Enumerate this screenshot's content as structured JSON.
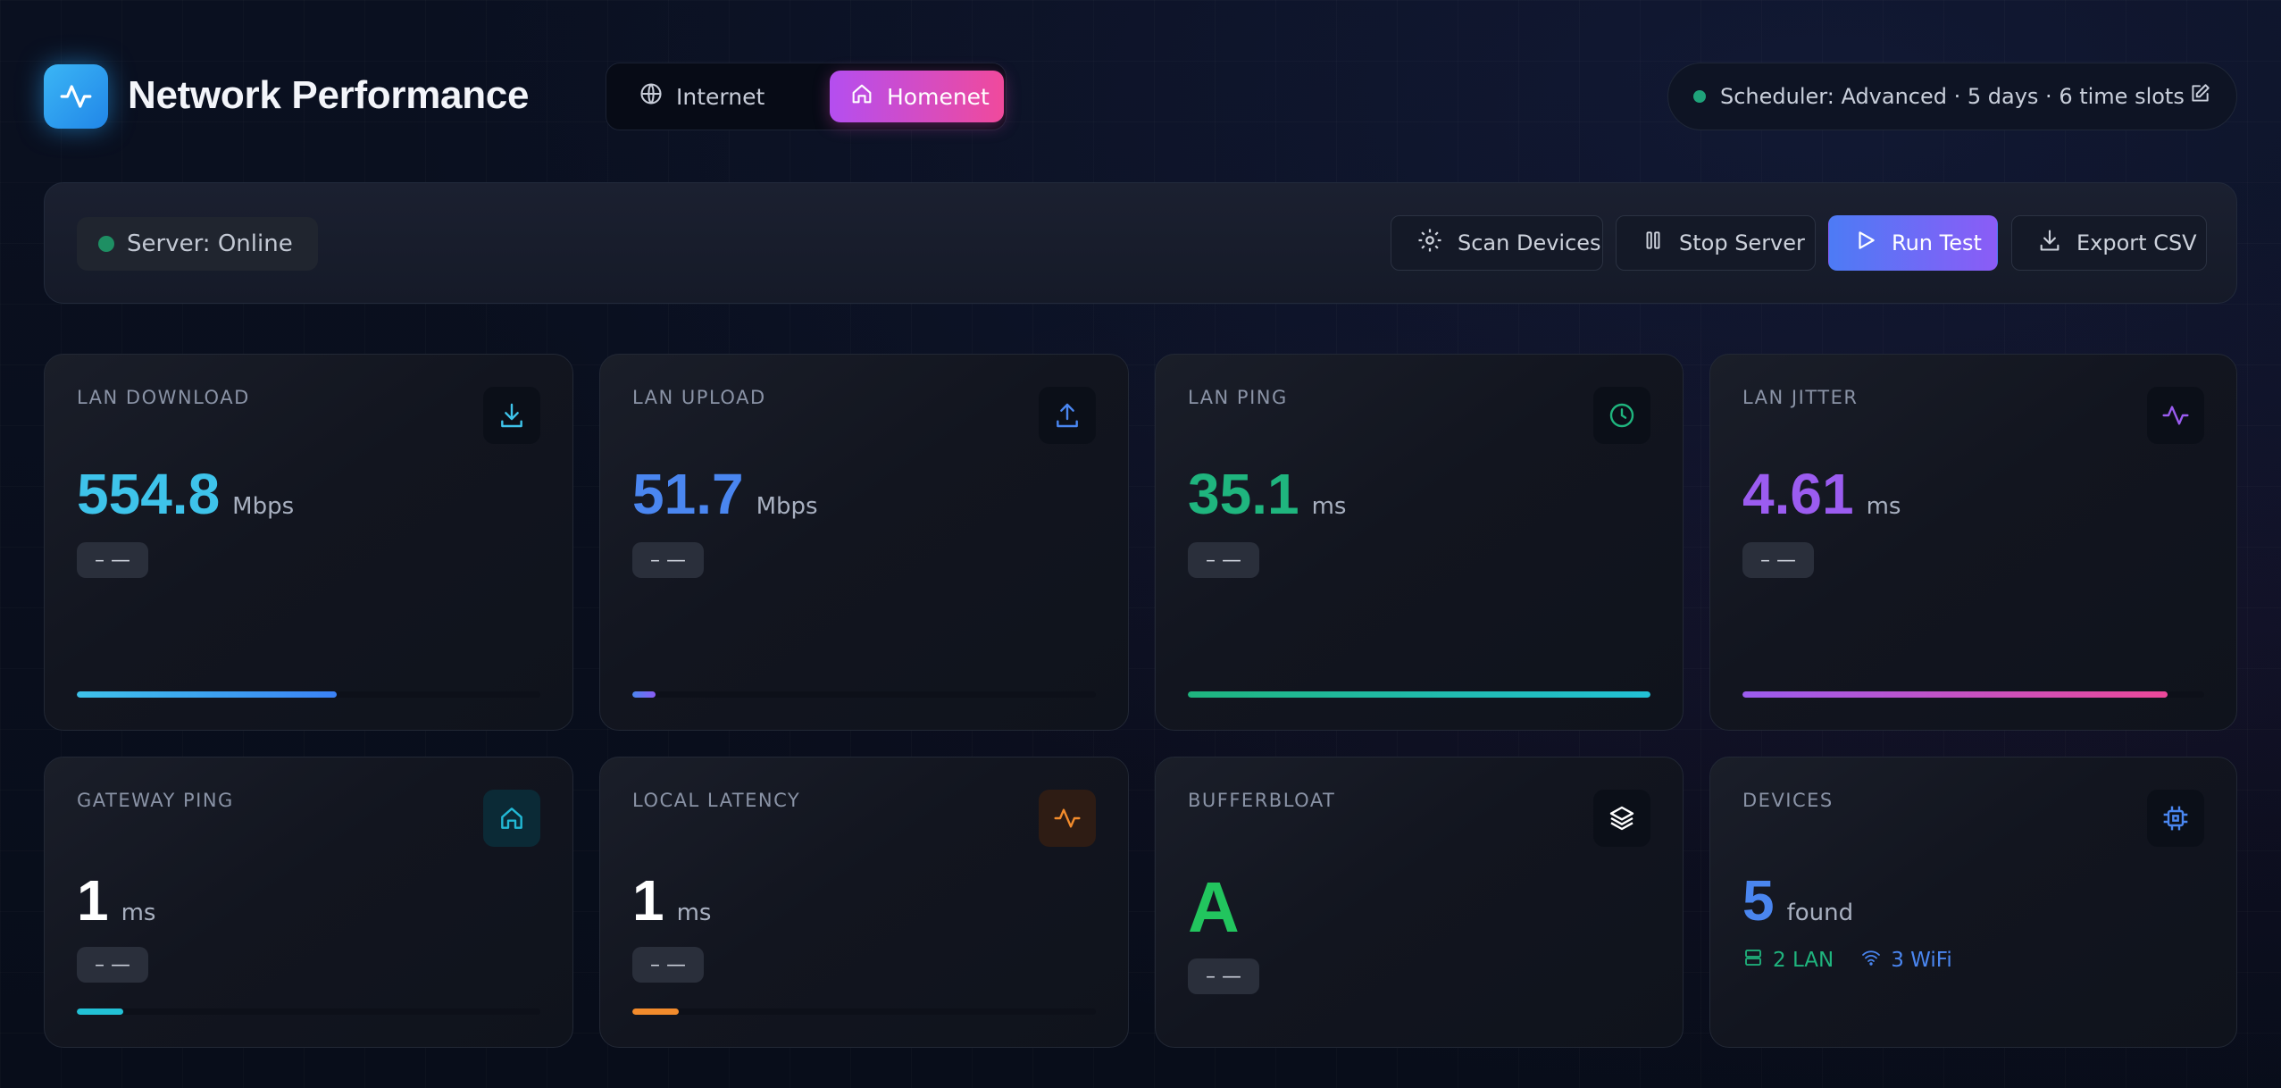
{
  "header": {
    "app_icon": "activity-icon",
    "title": "Network Performance",
    "tabs": [
      {
        "label": "Internet",
        "icon": "globe-icon",
        "active": false
      },
      {
        "label": "Homenet",
        "icon": "home-icon",
        "active": true
      }
    ],
    "scheduler": {
      "text": "Scheduler: Advanced · 5 days · 6 time slots",
      "status_color": "#1fa37a",
      "edit_icon": "edit-icon"
    }
  },
  "toolbar": {
    "server_status": "Server: Online",
    "buttons": {
      "scan": "Scan Devices",
      "stop": "Stop Server",
      "run": "Run Test",
      "export": "Export CSV"
    }
  },
  "cards": {
    "lan_download": {
      "label": "LAN DOWNLOAD",
      "value": "554.8",
      "unit": "Mbps",
      "delta": "– —",
      "icon": "download-icon",
      "color": "#3ec3ea",
      "progress": 0.56
    },
    "lan_upload": {
      "label": "LAN UPLOAD",
      "value": "51.7",
      "unit": "Mbps",
      "delta": "– —",
      "icon": "upload-icon",
      "color": "#4a86f0",
      "progress": 0.05
    },
    "lan_ping": {
      "label": "LAN PING",
      "value": "35.1",
      "unit": "ms",
      "delta": "– —",
      "icon": "clock-icon",
      "color": "#1fb57e",
      "progress": 1.0
    },
    "lan_jitter": {
      "label": "LAN JITTER",
      "value": "4.61",
      "unit": "ms",
      "delta": "– —",
      "icon": "pulse-icon",
      "color": "#9b5cf0",
      "progress": 0.92
    },
    "gateway_ping": {
      "label": "GATEWAY PING",
      "value": "1",
      "unit": "ms",
      "delta": "– —",
      "icon": "home-icon",
      "color": "#ffffff",
      "progress": 0.1
    },
    "local_latency": {
      "label": "LOCAL LATENCY",
      "value": "1",
      "unit": "ms",
      "delta": "– —",
      "icon": "pulse-icon",
      "color": "#ffffff",
      "progress": 0.1
    },
    "bufferbloat": {
      "label": "BUFFERBLOAT",
      "grade": "A",
      "delta": "– —",
      "icon": "layers-icon"
    },
    "devices": {
      "label": "DEVICES",
      "value": "5",
      "unit": "found",
      "lan": "2 LAN",
      "wifi": "3 WiFi",
      "icon": "chip-icon",
      "color": "#4a86f0"
    }
  }
}
